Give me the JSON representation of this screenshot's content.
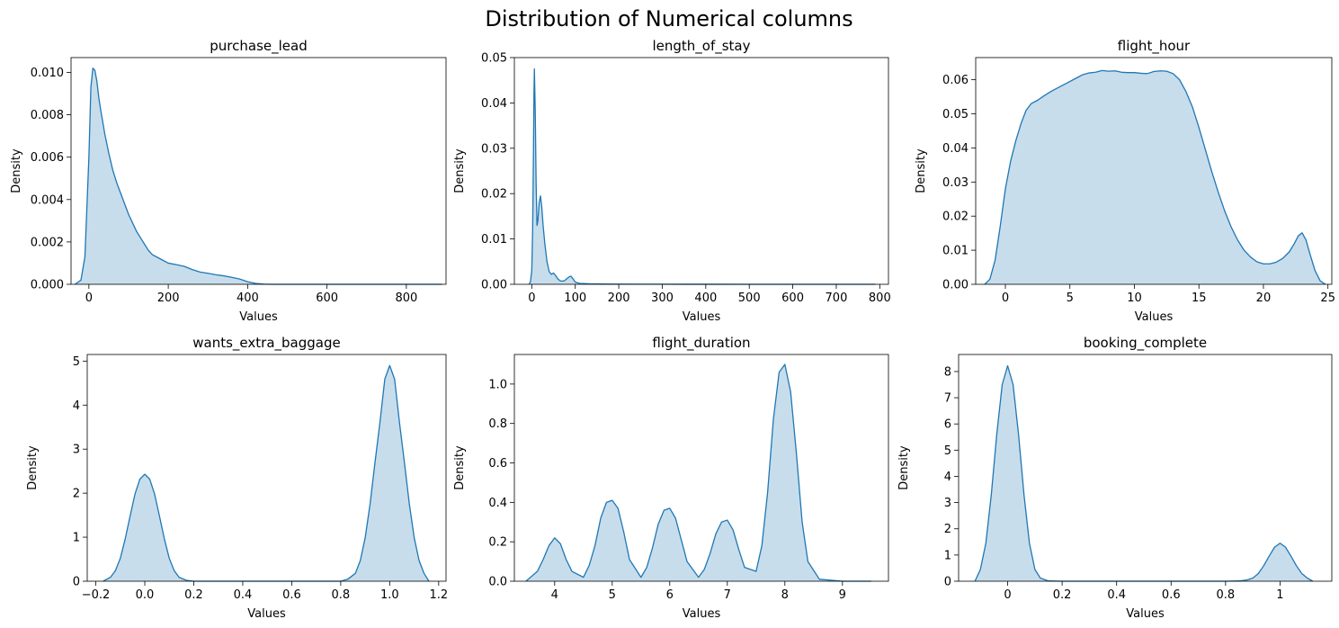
{
  "suptitle": "Distribution of Numerical columns",
  "colors": {
    "line": "#1f77b4",
    "fill": "#1f77b4",
    "fill_opacity": 0.25
  },
  "chart_data": [
    {
      "type": "area",
      "title": "purchase_lead",
      "xlabel": "Values",
      "ylabel": "Density",
      "xlim": [
        -45,
        900
      ],
      "ylim": [
        0,
        0.0107
      ],
      "xticks": [
        0,
        200,
        400,
        600,
        800
      ],
      "yticks": [
        0.0,
        0.002,
        0.004,
        0.006,
        0.008,
        0.01
      ],
      "ytick_labels": [
        "0.000",
        "0.002",
        "0.004",
        "0.006",
        "0.008",
        "0.010"
      ],
      "series": [
        {
          "x": [
            -35,
            -20,
            -10,
            0,
            5,
            10,
            15,
            20,
            25,
            30,
            40,
            50,
            60,
            70,
            80,
            90,
            100,
            110,
            120,
            130,
            140,
            150,
            160,
            180,
            200,
            220,
            240,
            260,
            280,
            300,
            320,
            340,
            360,
            380,
            400,
            420,
            440,
            460,
            500,
            600,
            700,
            800,
            890
          ],
          "y": [
            0.0,
            0.0002,
            0.0013,
            0.006,
            0.0093,
            0.0102,
            0.0101,
            0.0096,
            0.0088,
            0.0082,
            0.0071,
            0.0062,
            0.0054,
            0.0048,
            0.0043,
            0.0038,
            0.0033,
            0.0029,
            0.0025,
            0.0022,
            0.0019,
            0.0016,
            0.0014,
            0.0012,
            0.001,
            0.00093,
            0.00085,
            0.0007,
            0.00058,
            0.00052,
            0.00045,
            0.0004,
            0.00033,
            0.00025,
            0.00012,
            4e-05,
            1e-05,
            0.0,
            0.0,
            0.0,
            0.0,
            0.0,
            0.0
          ]
        }
      ]
    },
    {
      "type": "area",
      "title": "length_of_stay",
      "xlabel": "Values",
      "ylabel": "Density",
      "xlim": [
        -40,
        820
      ],
      "ylim": [
        0,
        0.05
      ],
      "xticks": [
        0,
        100,
        200,
        300,
        400,
        500,
        600,
        700,
        800
      ],
      "yticks": [
        0.0,
        0.01,
        0.02,
        0.03,
        0.04,
        0.05
      ],
      "ytick_labels": [
        "0.00",
        "0.01",
        "0.02",
        "0.03",
        "0.04",
        "0.05"
      ],
      "series": [
        {
          "x": [
            -6,
            -3,
            0,
            2,
            4,
            5,
            6,
            8,
            10,
            12,
            14,
            17,
            20,
            23,
            26,
            30,
            35,
            40,
            45,
            50,
            55,
            60,
            65,
            70,
            75,
            80,
            85,
            90,
            95,
            100,
            110,
            130,
            160,
            200,
            250,
            300,
            400,
            500,
            600,
            700,
            790
          ],
          "y": [
            0.0,
            0.0006,
            0.003,
            0.012,
            0.03,
            0.042,
            0.0475,
            0.038,
            0.022,
            0.013,
            0.014,
            0.018,
            0.0195,
            0.017,
            0.013,
            0.009,
            0.005,
            0.0028,
            0.0022,
            0.0025,
            0.0019,
            0.0012,
            0.0008,
            0.0007,
            0.0008,
            0.0012,
            0.0016,
            0.0018,
            0.0012,
            0.0005,
            0.0002,
            0.00012,
            8e-05,
            5e-05,
            3e-05,
            2e-05,
            1e-05,
            0.0,
            0.0,
            0.0,
            0.0
          ]
        }
      ]
    },
    {
      "type": "area",
      "title": "flight_hour",
      "xlabel": "Values",
      "ylabel": "Density",
      "xlim": [
        -2.3,
        25.3
      ],
      "ylim": [
        0,
        0.0665
      ],
      "xticks": [
        0,
        5,
        10,
        15,
        20,
        25
      ],
      "yticks": [
        0.0,
        0.01,
        0.02,
        0.03,
        0.04,
        0.05,
        0.06
      ],
      "ytick_labels": [
        "0.00",
        "0.01",
        "0.02",
        "0.03",
        "0.04",
        "0.05",
        "0.06"
      ],
      "series": [
        {
          "x": [
            -1.6,
            -1.2,
            -0.8,
            -0.4,
            0,
            0.4,
            0.8,
            1.2,
            1.6,
            2.0,
            2.5,
            3.0,
            3.5,
            4.0,
            4.5,
            5.0,
            5.5,
            6.0,
            6.5,
            7.0,
            7.5,
            8.0,
            8.5,
            9.0,
            9.5,
            10.0,
            10.5,
            11.0,
            11.5,
            12.0,
            12.5,
            13.0,
            13.5,
            14.0,
            14.5,
            15.0,
            15.5,
            16.0,
            16.5,
            17.0,
            17.5,
            18.0,
            18.5,
            19.0,
            19.5,
            20.0,
            20.5,
            21.0,
            21.5,
            22.0,
            22.4,
            22.7,
            23.0,
            23.3,
            23.6,
            24.0,
            24.4,
            24.8
          ],
          "y": [
            0.0,
            0.0015,
            0.007,
            0.017,
            0.028,
            0.036,
            0.042,
            0.047,
            0.051,
            0.053,
            0.054,
            0.0553,
            0.0565,
            0.0575,
            0.0585,
            0.0595,
            0.0605,
            0.0615,
            0.062,
            0.0622,
            0.0627,
            0.0625,
            0.0626,
            0.0622,
            0.0621,
            0.0621,
            0.0619,
            0.0618,
            0.0624,
            0.0626,
            0.0625,
            0.0618,
            0.06,
            0.0565,
            0.052,
            0.046,
            0.0395,
            0.033,
            0.027,
            0.0215,
            0.0168,
            0.013,
            0.01,
            0.008,
            0.0066,
            0.006,
            0.006,
            0.0065,
            0.0076,
            0.0095,
            0.012,
            0.0142,
            0.0151,
            0.013,
            0.009,
            0.004,
            0.001,
            0.0
          ]
        }
      ]
    },
    {
      "type": "area",
      "title": "wants_extra_baggage",
      "xlabel": "Values",
      "ylabel": "Density",
      "xlim": [
        -0.235,
        1.23
      ],
      "ylim": [
        0,
        5.15
      ],
      "xticks": [
        -0.2,
        0.0,
        0.2,
        0.4,
        0.6,
        0.8,
        1.0,
        1.2
      ],
      "yticks": [
        0,
        1,
        2,
        3,
        4,
        5
      ],
      "xtick_labels": [
        "−0.2",
        "0.0",
        "0.2",
        "0.4",
        "0.6",
        "0.8",
        "1.0",
        "1.2"
      ],
      "ytick_labels": [
        "0",
        "1",
        "2",
        "3",
        "4",
        "5"
      ],
      "series": [
        {
          "x": [
            -0.17,
            -0.14,
            -0.12,
            -0.1,
            -0.08,
            -0.06,
            -0.04,
            -0.02,
            0.0,
            0.02,
            0.04,
            0.06,
            0.08,
            0.1,
            0.12,
            0.14,
            0.17,
            0.2,
            0.3,
            0.5,
            0.7,
            0.8,
            0.83,
            0.86,
            0.88,
            0.9,
            0.92,
            0.94,
            0.96,
            0.98,
            1.0,
            1.02,
            1.04,
            1.06,
            1.08,
            1.1,
            1.12,
            1.14,
            1.16
          ],
          "y": [
            0.0,
            0.09,
            0.24,
            0.52,
            0.96,
            1.48,
            1.98,
            2.32,
            2.43,
            2.32,
            1.98,
            1.48,
            0.96,
            0.52,
            0.24,
            0.09,
            0.02,
            0.0,
            0.0,
            0.0,
            0.0,
            0.0,
            0.05,
            0.18,
            0.47,
            0.99,
            1.76,
            2.7,
            3.6,
            4.59,
            4.9,
            4.59,
            3.6,
            2.7,
            1.76,
            0.99,
            0.47,
            0.18,
            0.0
          ]
        }
      ]
    },
    {
      "type": "area",
      "title": "flight_duration",
      "xlabel": "Values",
      "ylabel": "Density",
      "xlim": [
        3.3,
        9.8
      ],
      "ylim": [
        0,
        1.15
      ],
      "xticks": [
        4,
        5,
        6,
        7,
        8,
        9
      ],
      "yticks": [
        0.0,
        0.2,
        0.4,
        0.6,
        0.8,
        1.0
      ],
      "ytick_labels": [
        "0.0",
        "0.2",
        "0.4",
        "0.6",
        "0.8",
        "1.0"
      ],
      "series": [
        {
          "x": [
            3.5,
            3.7,
            3.8,
            3.9,
            4.0,
            4.1,
            4.2,
            4.3,
            4.5,
            4.6,
            4.7,
            4.8,
            4.9,
            5.0,
            5.1,
            5.2,
            5.3,
            5.5,
            5.6,
            5.7,
            5.8,
            5.9,
            6.0,
            6.1,
            6.2,
            6.3,
            6.5,
            6.6,
            6.7,
            6.8,
            6.9,
            7.0,
            7.1,
            7.2,
            7.3,
            7.5,
            7.6,
            7.7,
            7.8,
            7.9,
            8.0,
            8.1,
            8.2,
            8.3,
            8.4,
            8.6,
            9.0,
            9.5
          ],
          "y": [
            0.0,
            0.05,
            0.11,
            0.18,
            0.22,
            0.19,
            0.11,
            0.05,
            0.02,
            0.08,
            0.18,
            0.32,
            0.4,
            0.41,
            0.37,
            0.25,
            0.11,
            0.02,
            0.07,
            0.17,
            0.29,
            0.36,
            0.37,
            0.32,
            0.21,
            0.1,
            0.02,
            0.06,
            0.14,
            0.24,
            0.3,
            0.31,
            0.26,
            0.16,
            0.07,
            0.05,
            0.18,
            0.45,
            0.82,
            1.06,
            1.1,
            0.96,
            0.65,
            0.3,
            0.1,
            0.01,
            0.0,
            0.0
          ]
        }
      ]
    },
    {
      "type": "area",
      "title": "booking_complete",
      "xlabel": "Values",
      "ylabel": "Density",
      "xlim": [
        -0.18,
        1.19
      ],
      "ylim": [
        0,
        8.65
      ],
      "xticks": [
        0.0,
        0.2,
        0.4,
        0.6,
        0.8,
        1.0
      ],
      "yticks": [
        0,
        1,
        2,
        3,
        4,
        5,
        6,
        7,
        8
      ],
      "ytick_labels": [
        "0",
        "1",
        "2",
        "3",
        "4",
        "5",
        "6",
        "7",
        "8"
      ],
      "series": [
        {
          "x": [
            -0.12,
            -0.1,
            -0.08,
            -0.06,
            -0.04,
            -0.02,
            0.0,
            0.02,
            0.04,
            0.06,
            0.08,
            0.1,
            0.12,
            0.15,
            0.2,
            0.5,
            0.8,
            0.85,
            0.88,
            0.9,
            0.92,
            0.94,
            0.96,
            0.98,
            1.0,
            1.02,
            1.04,
            1.06,
            1.08,
            1.1,
            1.12
          ],
          "y": [
            0.0,
            0.45,
            1.45,
            3.3,
            5.6,
            7.5,
            8.22,
            7.5,
            5.6,
            3.3,
            1.45,
            0.45,
            0.12,
            0.01,
            0.0,
            0.0,
            0.0,
            0.01,
            0.05,
            0.12,
            0.29,
            0.59,
            0.96,
            1.3,
            1.45,
            1.3,
            0.96,
            0.59,
            0.29,
            0.12,
            0.0
          ]
        }
      ]
    }
  ]
}
